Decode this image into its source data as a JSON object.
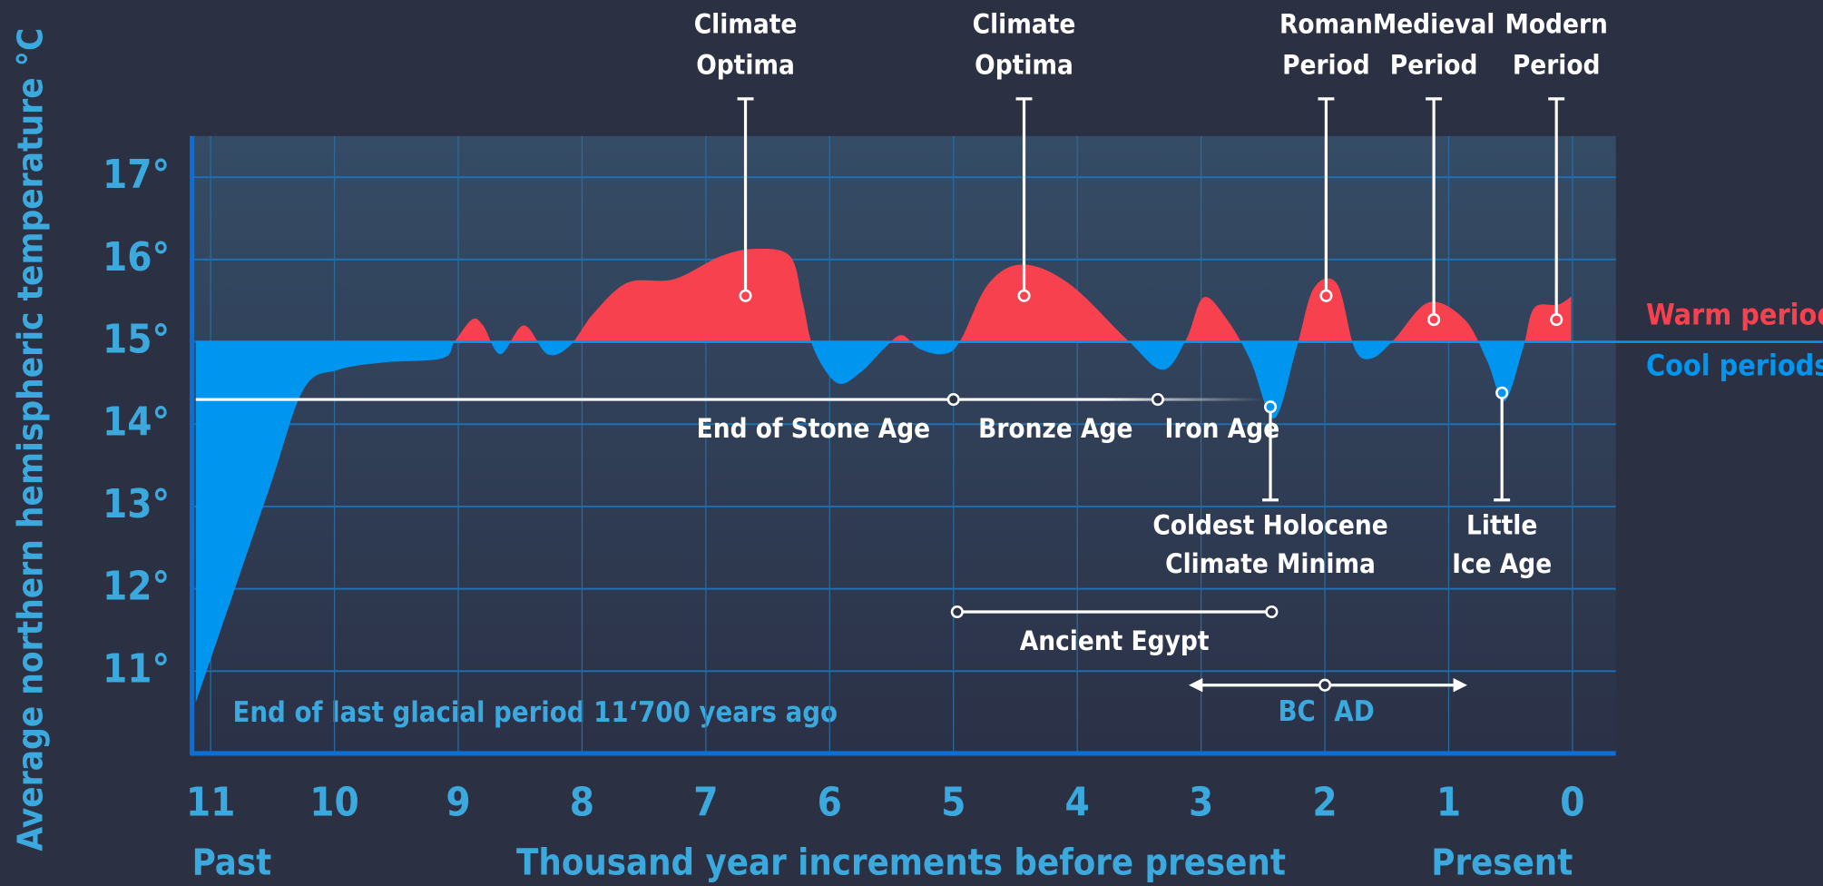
{
  "chart_data": {
    "type": "area",
    "x": [
      11.12,
      10.53,
      10.25,
      9.97,
      9.6,
      9.13,
      9.03,
      8.89,
      8.8,
      8.66,
      8.47,
      8.28,
      8.1,
      7.91,
      7.63,
      7.26,
      6.88,
      6.6,
      6.32,
      6.22,
      6.13,
      5.94,
      5.75,
      5.56,
      5.42,
      5.28,
      5.09,
      4.95,
      4.72,
      4.44,
      4.06,
      3.6,
      3.31,
      3.12,
      2.98,
      2.79,
      2.6,
      2.41,
      2.23,
      2.09,
      1.9,
      1.76,
      1.62,
      1.44,
      1.16,
      0.87,
      0.69,
      0.55,
      0.4,
      0.31,
      0.12,
      0.01
    ],
    "values": [
      10.62,
      13.2,
      14.42,
      14.66,
      14.75,
      14.8,
      15.0,
      15.27,
      15.2,
      14.85,
      15.2,
      14.85,
      14.95,
      15.34,
      15.72,
      15.76,
      16.04,
      16.13,
      16.04,
      15.5,
      14.92,
      14.5,
      14.63,
      14.92,
      15.08,
      14.92,
      14.85,
      15.0,
      15.7,
      15.94,
      15.7,
      15.03,
      14.66,
      15.03,
      15.54,
      15.27,
      14.77,
      14.07,
      14.92,
      15.65,
      15.7,
      14.92,
      14.8,
      15.03,
      15.48,
      15.27,
      14.77,
      14.28,
      14.92,
      15.41,
      15.45,
      15.55
    ],
    "baseline": 15,
    "legend": [
      {
        "name": "Warm periods",
        "color": "#f7414f"
      },
      {
        "name": "Cool periods",
        "color": "#0096f0"
      }
    ],
    "xlim": [
      11.15,
      -0.35
    ],
    "ylim": [
      10,
      17.5
    ],
    "xticks": [
      11,
      10,
      9,
      8,
      7,
      6,
      5,
      4,
      3,
      2,
      1,
      0
    ],
    "yticks": [
      {
        "value": 11,
        "label": "11°"
      },
      {
        "value": 12,
        "label": "12°"
      },
      {
        "value": 13,
        "label": "13°"
      },
      {
        "value": 14,
        "label": "14°"
      },
      {
        "value": 15,
        "label": "15°"
      },
      {
        "value": 16,
        "label": "16°"
      },
      {
        "value": 17,
        "label": "17°"
      }
    ],
    "grid": true,
    "xlabel": "Thousand year increments before present",
    "ylabel": "Average northern hemispheric temperature °C",
    "x_left_label": "Past",
    "x_right_label": "Present",
    "note": "End of last glacial period 11‘700 years ago",
    "annotations": [
      {
        "text": [
          "Climate",
          "Optima"
        ],
        "x": 6.68,
        "y": 15.56,
        "anchor": "top"
      },
      {
        "text": [
          "Climate",
          "Optima"
        ],
        "x": 4.43,
        "y": 15.56,
        "anchor": "top"
      },
      {
        "text": [
          "Roman",
          "Period"
        ],
        "x": 1.99,
        "y": 15.56,
        "anchor": "top"
      },
      {
        "text": [
          "Medieval",
          "Period"
        ],
        "x": 1.12,
        "y": 15.27,
        "anchor": "top"
      },
      {
        "text": [
          "Modern",
          "Period"
        ],
        "x": 0.13,
        "y": 15.27,
        "anchor": "top"
      },
      {
        "text": [
          "Coldest Holocene",
          "Climate Minima"
        ],
        "x": 2.44,
        "y": 14.21,
        "anchor": "bottom"
      },
      {
        "text": [
          "Little",
          "Ice Age"
        ],
        "x": 0.57,
        "y": 14.38,
        "anchor": "bottom"
      }
    ],
    "eras": {
      "y": 14.3,
      "start": 11.12,
      "end": 2.5,
      "boundaries": [
        5,
        3.35
      ],
      "labels": [
        "End of Stone Age",
        "Bronze Age",
        "Iron Age"
      ]
    },
    "egypt": {
      "label": "Ancient Egypt",
      "y": 11.72,
      "start": 4.97,
      "end": 2.43
    },
    "era_divide": {
      "labels": [
        "BC",
        "AD"
      ],
      "y": 10.83,
      "start": 3.1,
      "end": 0.85,
      "at": 2
    }
  }
}
